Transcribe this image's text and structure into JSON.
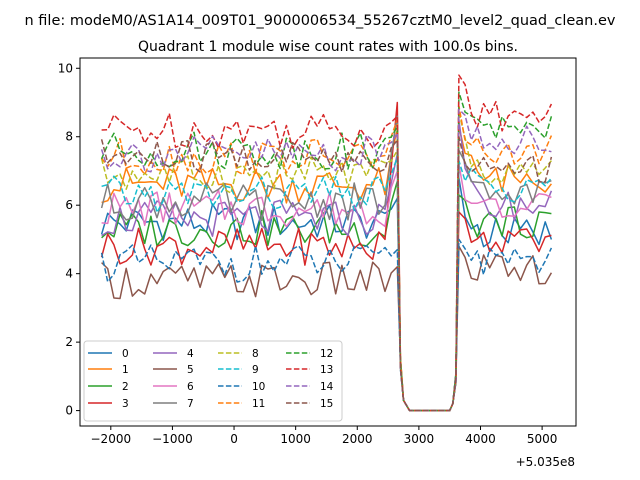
{
  "suptitle": "n file: modeM0/AS1A14_009T01_9000006534_55267cztM0_level2_quad_clean.ev",
  "chart_data": {
    "type": "line",
    "title": "Quadrant 1 module wise count rates with 100.0s bins.",
    "xlabel": "",
    "ylabel": "",
    "x_offset_label": "+5.035e8",
    "xlim": [
      -2500,
      5550
    ],
    "ylim": [
      -0.45,
      10.3
    ],
    "xticks": [
      -2000,
      -1000,
      0,
      1000,
      2000,
      3000,
      4000,
      5000
    ],
    "xtick_labels": [
      "−2000",
      "−1000",
      "0",
      "1000",
      "2000",
      "3000",
      "4000",
      "5000"
    ],
    "yticks": [
      0,
      2,
      4,
      6,
      8,
      10
    ],
    "ytick_labels": [
      "0",
      "2",
      "4",
      "6",
      "8",
      "10"
    ],
    "grid": false,
    "legend": {
      "placement": "lower-left",
      "columns": 4
    },
    "gap": {
      "drop_start": 2650,
      "zero_start": 2850,
      "zero_end": 3500,
      "rise_end": 3650
    },
    "segment_a": {
      "x_start": -2150,
      "x_end": 2650,
      "step": 100
    },
    "segment_b": {
      "x_start": 3650,
      "x_end": 5150,
      "step": 100
    },
    "series": [
      {
        "name": "0",
        "color": "#1f77b4",
        "dash": "solid",
        "base_a": 5.5,
        "peak_a": 6.2,
        "base_b": 5.2,
        "peak_b": 6.8
      },
      {
        "name": "1",
        "color": "#ff7f0e",
        "dash": "solid",
        "base_a": 6.6,
        "peak_a": 8.2,
        "base_b": 6.8,
        "peak_b": 8.3
      },
      {
        "name": "2",
        "color": "#2ca02c",
        "dash": "solid",
        "base_a": 5.3,
        "peak_a": 6.7,
        "base_b": 5.5,
        "peak_b": 6.3
      },
      {
        "name": "3",
        "color": "#d62728",
        "dash": "solid",
        "base_a": 4.8,
        "peak_a": 9.0,
        "base_b": 4.9,
        "peak_b": 5.8
      },
      {
        "name": "4",
        "color": "#9467bd",
        "dash": "solid",
        "base_a": 5.6,
        "peak_a": 7.5,
        "base_b": 6.0,
        "peak_b": 8.5
      },
      {
        "name": "5",
        "color": "#8c564b",
        "dash": "solid",
        "base_a": 3.8,
        "peak_a": 4.2,
        "base_b": 4.1,
        "peak_b": 4.8
      },
      {
        "name": "6",
        "color": "#e377c2",
        "dash": "solid",
        "base_a": 5.9,
        "peak_a": 7.0,
        "base_b": 5.9,
        "peak_b": 7.2
      },
      {
        "name": "7",
        "color": "#7f7f7f",
        "dash": "solid",
        "base_a": 6.1,
        "peak_a": 8.6,
        "base_b": 6.4,
        "peak_b": 7.6
      },
      {
        "name": "8",
        "color": "#bcbd22",
        "dash": "dashed",
        "base_a": 6.9,
        "peak_a": 7.6,
        "base_b": 7.0,
        "peak_b": 8.7
      },
      {
        "name": "9",
        "color": "#17becf",
        "dash": "dashed",
        "base_a": 6.3,
        "peak_a": 7.4,
        "base_b": 6.5,
        "peak_b": 7.3
      },
      {
        "name": "10",
        "color": "#1f77b4",
        "dash": "dashed",
        "base_a": 4.3,
        "peak_a": 4.7,
        "base_b": 4.4,
        "peak_b": 5.0
      },
      {
        "name": "11",
        "color": "#ff7f0e",
        "dash": "dashed",
        "base_a": 7.4,
        "peak_a": 8.5,
        "base_b": 7.6,
        "peak_b": 8.9
      },
      {
        "name": "12",
        "color": "#2ca02c",
        "dash": "dashed",
        "base_a": 7.6,
        "peak_a": 8.3,
        "base_b": 8.3,
        "peak_b": 9.3
      },
      {
        "name": "13",
        "color": "#d62728",
        "dash": "dashed",
        "base_a": 8.2,
        "peak_a": 8.6,
        "base_b": 8.6,
        "peak_b": 9.8
      },
      {
        "name": "14",
        "color": "#9467bd",
        "dash": "dashed",
        "base_a": 7.5,
        "peak_a": 8.1,
        "base_b": 7.9,
        "peak_b": 8.8
      },
      {
        "name": "15",
        "color": "#8c564b",
        "dash": "dashed",
        "base_a": 7.4,
        "peak_a": 7.9,
        "base_b": 7.1,
        "peak_b": 8.0
      }
    ]
  }
}
